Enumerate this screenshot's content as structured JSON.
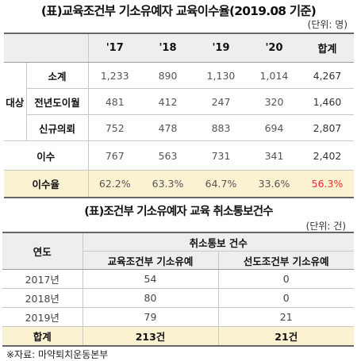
{
  "table1": {
    "title": "(표)교육조건부 기소유예자 교육이수율(2019.08 기준)",
    "unit": "(단위: 명)",
    "columns": [
      "'17",
      "'18",
      "'19",
      "'20",
      "합계"
    ],
    "group_label": "대상",
    "rows": [
      {
        "label": "소계",
        "values": [
          "1,233",
          "890",
          "1,130",
          "1,014",
          "4,267"
        ]
      },
      {
        "label": "전년도이월",
        "values": [
          "481",
          "412",
          "247",
          "320",
          "1,460"
        ]
      },
      {
        "label": "신규의뢰",
        "values": [
          "752",
          "478",
          "883",
          "694",
          "2,807"
        ]
      }
    ],
    "completion": {
      "label": "이수",
      "values": [
        "767",
        "563",
        "731",
        "341",
        "2,402"
      ]
    },
    "rate": {
      "label": "이수율",
      "values": [
        "62.2%",
        "63.3%",
        "64.7%",
        "33.6%",
        "56.3%"
      ]
    },
    "highlight_color": "#e53030",
    "rate_row_bg": "#fbf2d2"
  },
  "table2": {
    "title": "(표)조건부 기소유예자 교육 취소통보건수",
    "unit": "(단위: 건)",
    "year_header": "연도",
    "group_header": "취소통보 건수",
    "subheaders": [
      "교육조건부 기소유예",
      "선도조건부 기소유예"
    ],
    "rows": [
      {
        "year": "2017년",
        "values": [
          "54",
          "0"
        ]
      },
      {
        "year": "2018년",
        "values": [
          "80",
          "0"
        ]
      },
      {
        "year": "2019년",
        "values": [
          "79",
          "21"
        ]
      }
    ],
    "total": {
      "label": "합계",
      "values": [
        "213건",
        "21건"
      ]
    }
  },
  "source": "※자료: 마약퇴치운동본부"
}
